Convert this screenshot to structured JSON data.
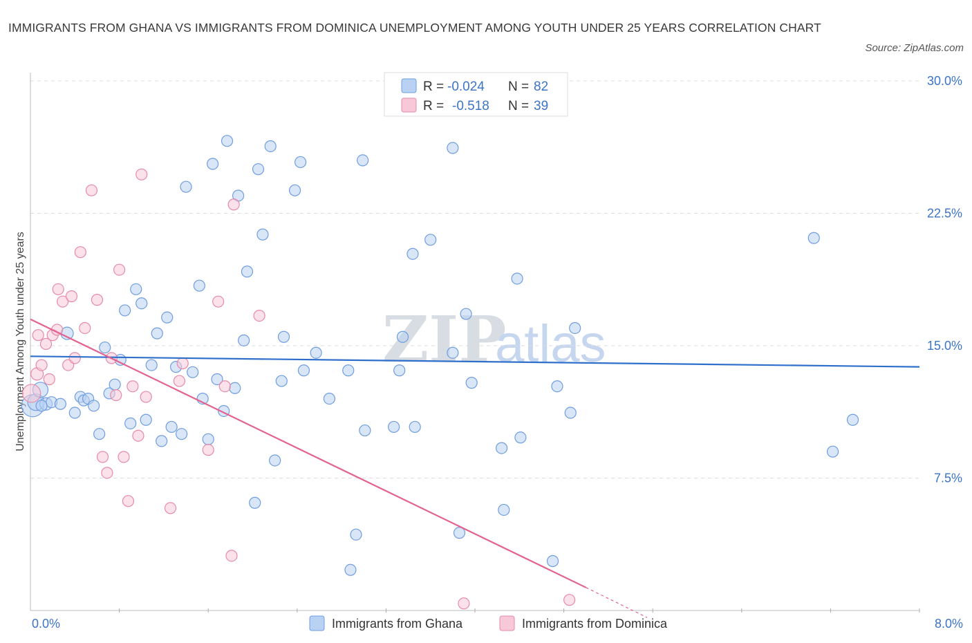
{
  "title": "IMMIGRANTS FROM GHANA VS IMMIGRANTS FROM DOMINICA UNEMPLOYMENT AMONG YOUTH UNDER 25 YEARS CORRELATION CHART",
  "source": "Source: ZipAtlas.com",
  "watermark": {
    "zip": "ZIP",
    "atlas": "atlas"
  },
  "colors": {
    "ghana_fill": "#b9d1f2",
    "ghana_stroke": "#6f9de0",
    "ghana_line": "#2f6fcc",
    "dominica_fill": "#f7c8d7",
    "dominica_stroke": "#e68aa8",
    "dominica_line": "#e3628f",
    "accent_text": "#3b74c8"
  },
  "legend_top": [
    {
      "r_label": "R = ",
      "r_value": "-0.024",
      "n_label": "N = ",
      "n_value": "82"
    },
    {
      "r_label": "R = ",
      "r_value": "-0.518",
      "n_label": "N = ",
      "n_value": "39"
    }
  ],
  "chart_data": {
    "type": "scatter",
    "title": "IMMIGRANTS FROM GHANA VS IMMIGRANTS FROM DOMINICA UNEMPLOYMENT AMONG YOUTH UNDER 25 YEARS CORRELATION CHART",
    "xlabel": "",
    "ylabel": "Unemployment Among Youth under 25 years",
    "xlim": [
      0,
      8
    ],
    "ylim": [
      0,
      30
    ],
    "x_tick_labels": [
      {
        "value": 0,
        "label": "0.0%"
      },
      {
        "value": 8,
        "label": "8.0%"
      }
    ],
    "y_tick_labels": [
      {
        "value": 7.5,
        "label": "7.5%"
      },
      {
        "value": 15,
        "label": "15.0%"
      },
      {
        "value": 22.5,
        "label": "22.5%"
      },
      {
        "value": 30,
        "label": "30.0%"
      }
    ],
    "series": [
      {
        "name": "Immigrants from Ghana",
        "r": -0.024,
        "n": 82,
        "trend": [
          [
            0,
            14.4
          ],
          [
            8,
            13.8
          ]
        ],
        "points": [
          [
            0.02,
            11.6,
            16
          ],
          [
            0.05,
            11.8,
            12
          ],
          [
            0.09,
            12.5,
            11
          ],
          [
            0.14,
            11.7,
            9
          ],
          [
            0.19,
            11.8,
            8
          ],
          [
            0.27,
            11.7,
            8
          ],
          [
            0.33,
            15.7,
            9
          ],
          [
            0.4,
            11.2,
            8
          ],
          [
            0.45,
            12.1,
            8
          ],
          [
            0.48,
            11.9,
            8
          ],
          [
            0.52,
            12.0,
            8
          ],
          [
            0.57,
            11.6,
            8
          ],
          [
            0.62,
            10.0,
            8
          ],
          [
            0.67,
            14.9,
            8
          ],
          [
            0.71,
            12.3,
            8
          ],
          [
            0.76,
            12.8,
            8
          ],
          [
            0.81,
            14.2,
            8
          ],
          [
            0.85,
            17.0,
            8
          ],
          [
            0.9,
            10.6,
            8
          ],
          [
            0.95,
            18.2,
            8
          ],
          [
            1.0,
            17.4,
            8
          ],
          [
            1.04,
            10.8,
            8
          ],
          [
            1.09,
            13.9,
            8
          ],
          [
            1.14,
            15.7,
            8
          ],
          [
            1.18,
            9.6,
            8
          ],
          [
            1.23,
            16.6,
            8
          ],
          [
            1.27,
            10.4,
            8
          ],
          [
            1.31,
            13.8,
            8
          ],
          [
            1.36,
            10.0,
            8
          ],
          [
            1.4,
            24.0,
            8
          ],
          [
            1.46,
            13.5,
            8
          ],
          [
            1.52,
            18.4,
            8
          ],
          [
            1.55,
            12.0,
            8
          ],
          [
            1.6,
            9.7,
            8
          ],
          [
            1.64,
            25.3,
            8
          ],
          [
            1.68,
            13.1,
            8
          ],
          [
            1.74,
            11.3,
            8
          ],
          [
            1.77,
            26.6,
            8
          ],
          [
            1.84,
            12.6,
            8
          ],
          [
            1.87,
            23.5,
            8
          ],
          [
            1.92,
            15.3,
            8
          ],
          [
            1.95,
            19.2,
            8
          ],
          [
            2.02,
            6.1,
            8
          ],
          [
            2.05,
            25.0,
            8
          ],
          [
            2.09,
            21.3,
            8
          ],
          [
            2.16,
            26.3,
            8
          ],
          [
            2.2,
            8.5,
            8
          ],
          [
            2.26,
            13.0,
            8
          ],
          [
            2.28,
            15.5,
            8
          ],
          [
            2.38,
            23.8,
            8
          ],
          [
            2.43,
            25.4,
            8
          ],
          [
            2.46,
            13.6,
            8
          ],
          [
            2.57,
            14.6,
            8
          ],
          [
            2.69,
            12.0,
            8
          ],
          [
            2.86,
            13.6,
            8
          ],
          [
            2.88,
            2.3,
            8
          ],
          [
            2.93,
            4.3,
            8
          ],
          [
            2.99,
            25.5,
            8
          ],
          [
            3.01,
            10.2,
            8
          ],
          [
            3.27,
            10.4,
            8
          ],
          [
            3.32,
            13.6,
            8
          ],
          [
            3.35,
            15.5,
            8
          ],
          [
            3.44,
            20.2,
            8
          ],
          [
            3.46,
            10.4,
            8
          ],
          [
            3.6,
            21.0,
            8
          ],
          [
            3.8,
            26.2,
            8
          ],
          [
            3.8,
            14.6,
            8
          ],
          [
            3.86,
            4.4,
            8
          ],
          [
            3.92,
            16.8,
            8
          ],
          [
            3.97,
            12.9,
            8
          ],
          [
            4.24,
            9.2,
            8
          ],
          [
            4.26,
            5.7,
            8
          ],
          [
            4.38,
            18.8,
            8
          ],
          [
            4.41,
            9.8,
            8
          ],
          [
            4.7,
            2.8,
            8
          ],
          [
            4.74,
            12.7,
            8
          ],
          [
            4.86,
            11.2,
            8
          ],
          [
            4.9,
            16.0,
            8
          ],
          [
            7.05,
            21.1,
            8
          ],
          [
            7.22,
            9.0,
            8
          ],
          [
            7.4,
            10.8,
            8
          ],
          [
            0.1,
            11.6,
            8
          ]
        ]
      },
      {
        "name": "Immigrants from Dominica",
        "r": -0.518,
        "n": 39,
        "trend": [
          [
            0,
            16.5
          ],
          [
            5.0,
            1.3
          ]
        ],
        "trend_dashed": [
          [
            5.0,
            1.3
          ],
          [
            5.55,
            -0.4
          ]
        ],
        "points": [
          [
            0.01,
            12.3,
            13
          ],
          [
            0.06,
            13.4,
            9
          ],
          [
            0.1,
            13.9,
            8
          ],
          [
            0.14,
            15.1,
            8
          ],
          [
            0.17,
            13.1,
            8
          ],
          [
            0.2,
            15.6,
            8
          ],
          [
            0.24,
            15.9,
            8
          ],
          [
            0.07,
            15.6,
            8
          ],
          [
            0.25,
            18.2,
            8
          ],
          [
            0.29,
            17.5,
            8
          ],
          [
            0.34,
            13.9,
            8
          ],
          [
            0.37,
            17.8,
            8
          ],
          [
            0.4,
            14.3,
            8
          ],
          [
            0.45,
            20.3,
            8
          ],
          [
            0.49,
            16.0,
            8
          ],
          [
            0.55,
            23.8,
            8
          ],
          [
            0.6,
            17.6,
            8
          ],
          [
            0.65,
            8.7,
            8
          ],
          [
            0.69,
            7.8,
            8
          ],
          [
            0.73,
            14.3,
            8
          ],
          [
            0.77,
            12.2,
            8
          ],
          [
            0.8,
            19.3,
            8
          ],
          [
            0.84,
            8.7,
            8
          ],
          [
            0.88,
            6.2,
            8
          ],
          [
            0.92,
            12.7,
            8
          ],
          [
            0.97,
            9.9,
            8
          ],
          [
            1.0,
            24.7,
            8
          ],
          [
            1.04,
            12.1,
            8
          ],
          [
            1.26,
            5.8,
            8
          ],
          [
            1.34,
            13.0,
            8
          ],
          [
            1.37,
            14.0,
            8
          ],
          [
            1.6,
            9.1,
            8
          ],
          [
            1.69,
            17.5,
            8
          ],
          [
            1.75,
            12.7,
            8
          ],
          [
            1.81,
            3.1,
            8
          ],
          [
            1.83,
            23.0,
            8
          ],
          [
            2.06,
            16.7,
            8
          ],
          [
            3.9,
            0.4,
            8
          ],
          [
            4.85,
            0.6,
            8
          ]
        ]
      }
    ],
    "legend": [
      {
        "name": "Immigrants from Ghana",
        "position": "bottom"
      },
      {
        "name": "Immigrants from Dominica",
        "position": "bottom"
      }
    ]
  }
}
